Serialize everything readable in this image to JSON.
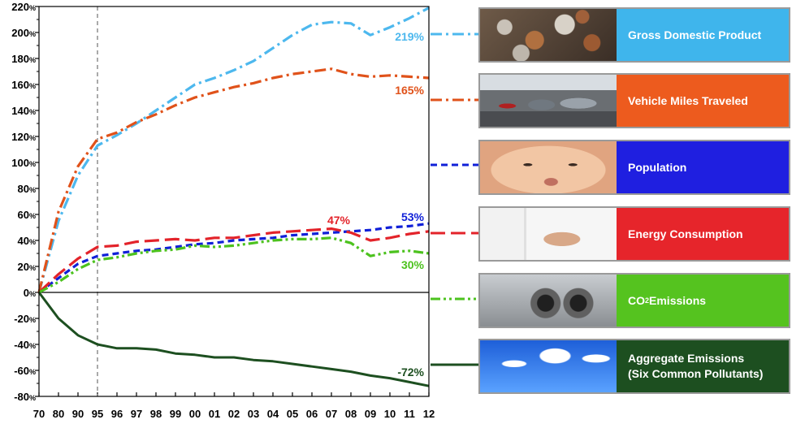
{
  "chart_data": {
    "type": "line",
    "title": "",
    "xlabel": "",
    "ylabel": "",
    "ylim": [
      -80,
      220
    ],
    "y_ticks": [
      220,
      200,
      180,
      160,
      140,
      120,
      100,
      80,
      60,
      40,
      20,
      0,
      -20,
      -40,
      -60,
      -80
    ],
    "y_tick_unit": "%",
    "x_tick_labels": [
      "70",
      "80",
      "90",
      "95",
      "96",
      "97",
      "98",
      "99",
      "00",
      "01",
      "02",
      "03",
      "04",
      "05",
      "06",
      "07",
      "08",
      "09",
      "10",
      "11",
      "12"
    ],
    "reference_line": {
      "x": "95",
      "style": "dashed"
    },
    "series": [
      {
        "name": "Gross Domestic Product",
        "color": "#4db8ee",
        "dash": "dashdot",
        "end_label": "219%",
        "values": [
          0,
          55,
          90,
          113,
          121,
          130,
          140,
          150,
          160,
          165,
          171,
          178,
          188,
          198,
          206,
          208,
          207,
          198,
          204,
          211,
          219
        ]
      },
      {
        "name": "Vehicle Miles Traveled",
        "color": "#e0521a",
        "dash": "dashdot",
        "end_label": "165%",
        "values": [
          0,
          62,
          97,
          118,
          123,
          131,
          137,
          144,
          150,
          154,
          158,
          161,
          165,
          168,
          170,
          172,
          168,
          166,
          167,
          166,
          165
        ]
      },
      {
        "name": "Population",
        "color": "#1020d8",
        "dash": "dash",
        "end_label": "53%",
        "values": [
          0,
          11,
          22,
          28,
          30,
          32,
          33,
          35,
          37,
          38,
          40,
          41,
          42,
          44,
          45,
          46,
          47,
          48,
          50,
          51,
          53
        ]
      },
      {
        "name": "Energy Consumption",
        "color": "#e3232a",
        "dash": "longdash",
        "end_label": "47%",
        "values": [
          0,
          14,
          26,
          35,
          36,
          39,
          40,
          41,
          40,
          42,
          42,
          44,
          46,
          47,
          48,
          49,
          46,
          40,
          42,
          45,
          47
        ]
      },
      {
        "name": "CO2 Emissions",
        "color": "#4cc21e",
        "dash": "dashdotdot",
        "end_label": "30%",
        "values": [
          0,
          8,
          18,
          25,
          27,
          30,
          32,
          33,
          36,
          35,
          36,
          38,
          40,
          41,
          41,
          42,
          38,
          28,
          31,
          32,
          30
        ]
      },
      {
        "name": "Aggregate Emissions",
        "color": "#1d4f20",
        "dash": "solid",
        "end_label": "-72%",
        "values": [
          0,
          -20,
          -33,
          -40,
          -43,
          -43,
          -44,
          -47,
          -48,
          -50,
          -50,
          -52,
          -53,
          -55,
          -57,
          -59,
          -61,
          -64,
          -66,
          -69,
          -72
        ]
      }
    ]
  },
  "legend_panels": [
    {
      "label": "Gross Domestic Product",
      "bg": "#3fb5ec",
      "photo": "coins-photo-icon"
    },
    {
      "label": "Vehicle Miles Traveled",
      "bg": "#ed5b1e",
      "photo": "traffic-photo-icon"
    },
    {
      "label": "Population",
      "bg": "#1f1fe0",
      "photo": "baby-photo-icon"
    },
    {
      "label": "Energy Consumption",
      "bg": "#e6252b",
      "photo": "plug-photo-icon"
    },
    {
      "label_main": "CO",
      "label_sub": "2",
      "label_rest": " Emissions",
      "bg": "#55c31f",
      "photo": "exhaust-photo-icon"
    },
    {
      "label": "Aggregate Emissions\n(Six Common Pollutants)",
      "bg": "#1d4f20",
      "photo": "smokestacks-photo-icon"
    }
  ]
}
